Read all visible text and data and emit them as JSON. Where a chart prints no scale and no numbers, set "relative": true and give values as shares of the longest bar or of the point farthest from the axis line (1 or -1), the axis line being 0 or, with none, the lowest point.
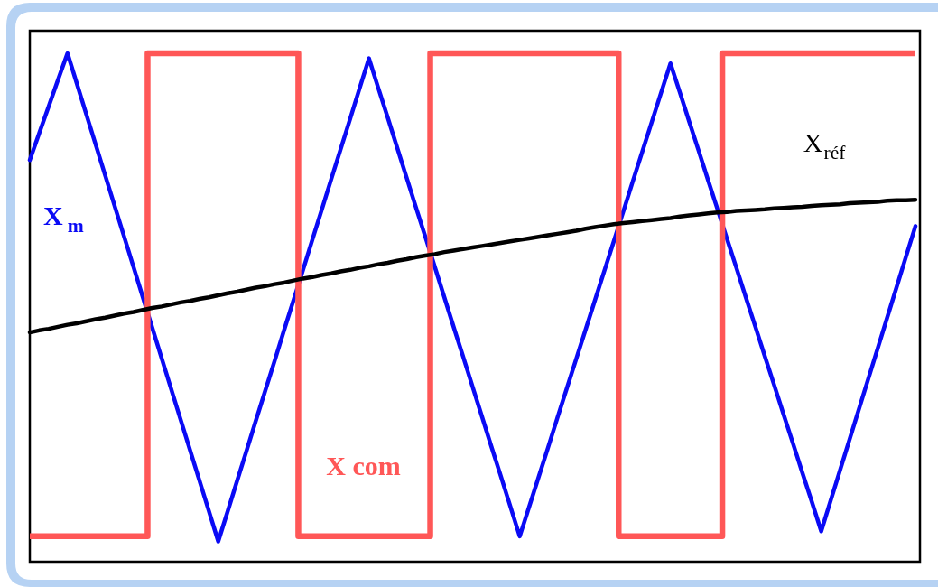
{
  "chart_data": {
    "type": "line",
    "relative": true,
    "categories": [
      null,
      null,
      null,
      null,
      null,
      null,
      null,
      null,
      null,
      null,
      null,
      null,
      null,
      null,
      null,
      null,
      null,
      null,
      null,
      null,
      null,
      null,
      null,
      null,
      null,
      null,
      null,
      null,
      null,
      null,
      null,
      null,
      null,
      null,
      null,
      null,
      null,
      null,
      null,
      null,
      null,
      null,
      null,
      null,
      null,
      null,
      null,
      null,
      null,
      null,
      null,
      null,
      null,
      null,
      null,
      null,
      null,
      null,
      null,
      null,
      null,
      null,
      null,
      null,
      null,
      null,
      null,
      null,
      null,
      null,
      null,
      null,
      null,
      null,
      null,
      null,
      null,
      null,
      null,
      null,
      null,
      null,
      null,
      null,
      null,
      null,
      null,
      null,
      null,
      null,
      null,
      null,
      null,
      null,
      null
    ],
    "series": [
      {
        "name": "X$_{m}$",
        "type": "line",
        "color": "#0a0af5",
        "values": [
          0.79,
          0.843,
          0.895,
          0.948,
          1.0,
          0.94,
          0.88,
          0.82,
          0.76,
          0.7,
          0.64,
          0.58,
          0.52,
          0.46,
          0.4,
          0.34,
          0.28,
          0.22,
          0.16,
          0.1,
          0.04,
          0.099,
          0.159,
          0.218,
          0.278,
          0.337,
          0.396,
          0.456,
          0.515,
          0.574,
          0.634,
          0.693,
          0.753,
          0.812,
          0.871,
          0.931,
          0.99,
          0.931,
          0.873,
          0.814,
          0.755,
          0.696,
          0.638,
          0.579,
          0.52,
          0.461,
          0.403,
          0.344,
          0.285,
          0.226,
          0.168,
          0.109,
          0.05,
          0.108,
          0.166,
          0.224,
          0.283,
          0.341,
          0.399,
          0.457,
          0.515,
          0.573,
          0.631,
          0.689,
          0.748,
          0.806,
          0.864,
          0.922,
          0.98,
          0.923,
          0.865,
          0.808,
          0.75,
          0.693,
          0.635,
          0.578,
          0.52,
          0.463,
          0.405,
          0.348,
          0.29,
          0.233,
          0.175,
          0.118,
          0.06,
          0.12,
          0.18,
          0.24,
          0.3,
          0.36,
          0.42,
          0.48,
          0.54,
          0.6,
          0.66
        ]
      },
      {
        "name": "X com",
        "type": "step",
        "color": "#ff5757",
        "values": [
          0.05,
          0.05,
          0.05,
          0.05,
          0.05,
          0.05,
          0.05,
          0.05,
          0.05,
          0.05,
          0.05,
          0.05,
          0.05,
          1.0,
          1.0,
          1.0,
          1.0,
          1.0,
          1.0,
          1.0,
          1.0,
          1.0,
          1.0,
          1.0,
          1.0,
          1.0,
          1.0,
          1.0,
          1.0,
          0.05,
          0.05,
          0.05,
          0.05,
          0.05,
          0.05,
          0.05,
          0.05,
          0.05,
          0.05,
          0.05,
          0.05,
          0.05,
          0.05,
          1.0,
          1.0,
          1.0,
          1.0,
          1.0,
          1.0,
          1.0,
          1.0,
          1.0,
          1.0,
          1.0,
          1.0,
          1.0,
          1.0,
          1.0,
          1.0,
          1.0,
          1.0,
          1.0,
          1.0,
          0.05,
          0.05,
          0.05,
          0.05,
          0.05,
          0.05,
          0.05,
          0.05,
          0.05,
          0.05,
          0.05,
          1.0,
          1.0,
          1.0,
          1.0,
          1.0,
          1.0,
          1.0,
          1.0,
          1.0,
          1.0,
          1.0,
          1.0,
          1.0,
          1.0,
          1.0,
          1.0,
          1.0,
          1.0,
          1.0,
          1.0,
          1.0
        ]
      },
      {
        "name": "X$_{réf}$",
        "type": "line",
        "color": "#000000",
        "values": [
          0.451,
          0.455,
          0.458,
          0.462,
          0.466,
          0.469,
          0.473,
          0.477,
          0.48,
          0.484,
          0.488,
          0.491,
          0.495,
          0.499,
          0.502,
          0.506,
          0.51,
          0.513,
          0.517,
          0.52,
          0.524,
          0.528,
          0.531,
          0.535,
          0.539,
          0.542,
          0.546,
          0.549,
          0.553,
          0.557,
          0.56,
          0.564,
          0.567,
          0.571,
          0.574,
          0.578,
          0.581,
          0.585,
          0.588,
          0.592,
          0.595,
          0.599,
          0.602,
          0.605,
          0.609,
          0.612,
          0.615,
          0.618,
          0.621,
          0.624,
          0.627,
          0.63,
          0.633,
          0.636,
          0.639,
          0.642,
          0.645,
          0.648,
          0.651,
          0.655,
          0.658,
          0.661,
          0.664,
          0.666,
          0.668,
          0.67,
          0.672,
          0.674,
          0.676,
          0.679,
          0.681,
          0.683,
          0.685,
          0.687,
          0.688,
          0.69,
          0.691,
          0.692,
          0.693,
          0.695,
          0.696,
          0.697,
          0.698,
          0.7,
          0.701,
          0.702,
          0.703,
          0.705,
          0.706,
          0.707,
          0.708,
          0.71,
          0.711,
          0.711,
          0.712
        ]
      }
    ]
  }
}
